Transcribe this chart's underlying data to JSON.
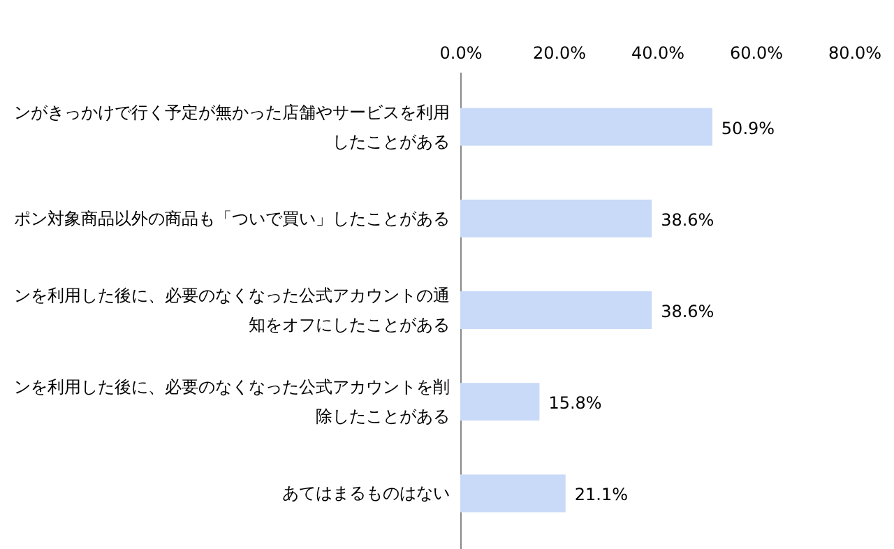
{
  "chart_data": {
    "type": "bar",
    "orientation": "horizontal",
    "categories": [
      "ンがきっかけで行く予定が無かった店舗やサービスを利用したことがある",
      "ポン対象商品以外の商品も「ついで買い」したことがある",
      "ンを利用した後に、必要のなくなった公式アカウントの通知をオフにしたことがある",
      "ンを利用した後に、必要のなくなった公式アカウントを削除したことがある",
      "あてはまるものはない"
    ],
    "values": [
      50.9,
      38.6,
      38.6,
      15.8,
      21.1
    ],
    "value_labels": [
      "50.9%",
      "38.6%",
      "38.6%",
      "15.8%",
      "21.1%"
    ],
    "color": "#c9daf8",
    "xlim": [
      0,
      80
    ],
    "xticks": [
      {
        "value": 0,
        "label": "0.0%"
      },
      {
        "value": 20,
        "label": "20.0%"
      },
      {
        "value": 40,
        "label": "40.0%"
      },
      {
        "value": 60,
        "label": "60.0%"
      },
      {
        "value": 80,
        "label": "80.0%"
      }
    ]
  }
}
